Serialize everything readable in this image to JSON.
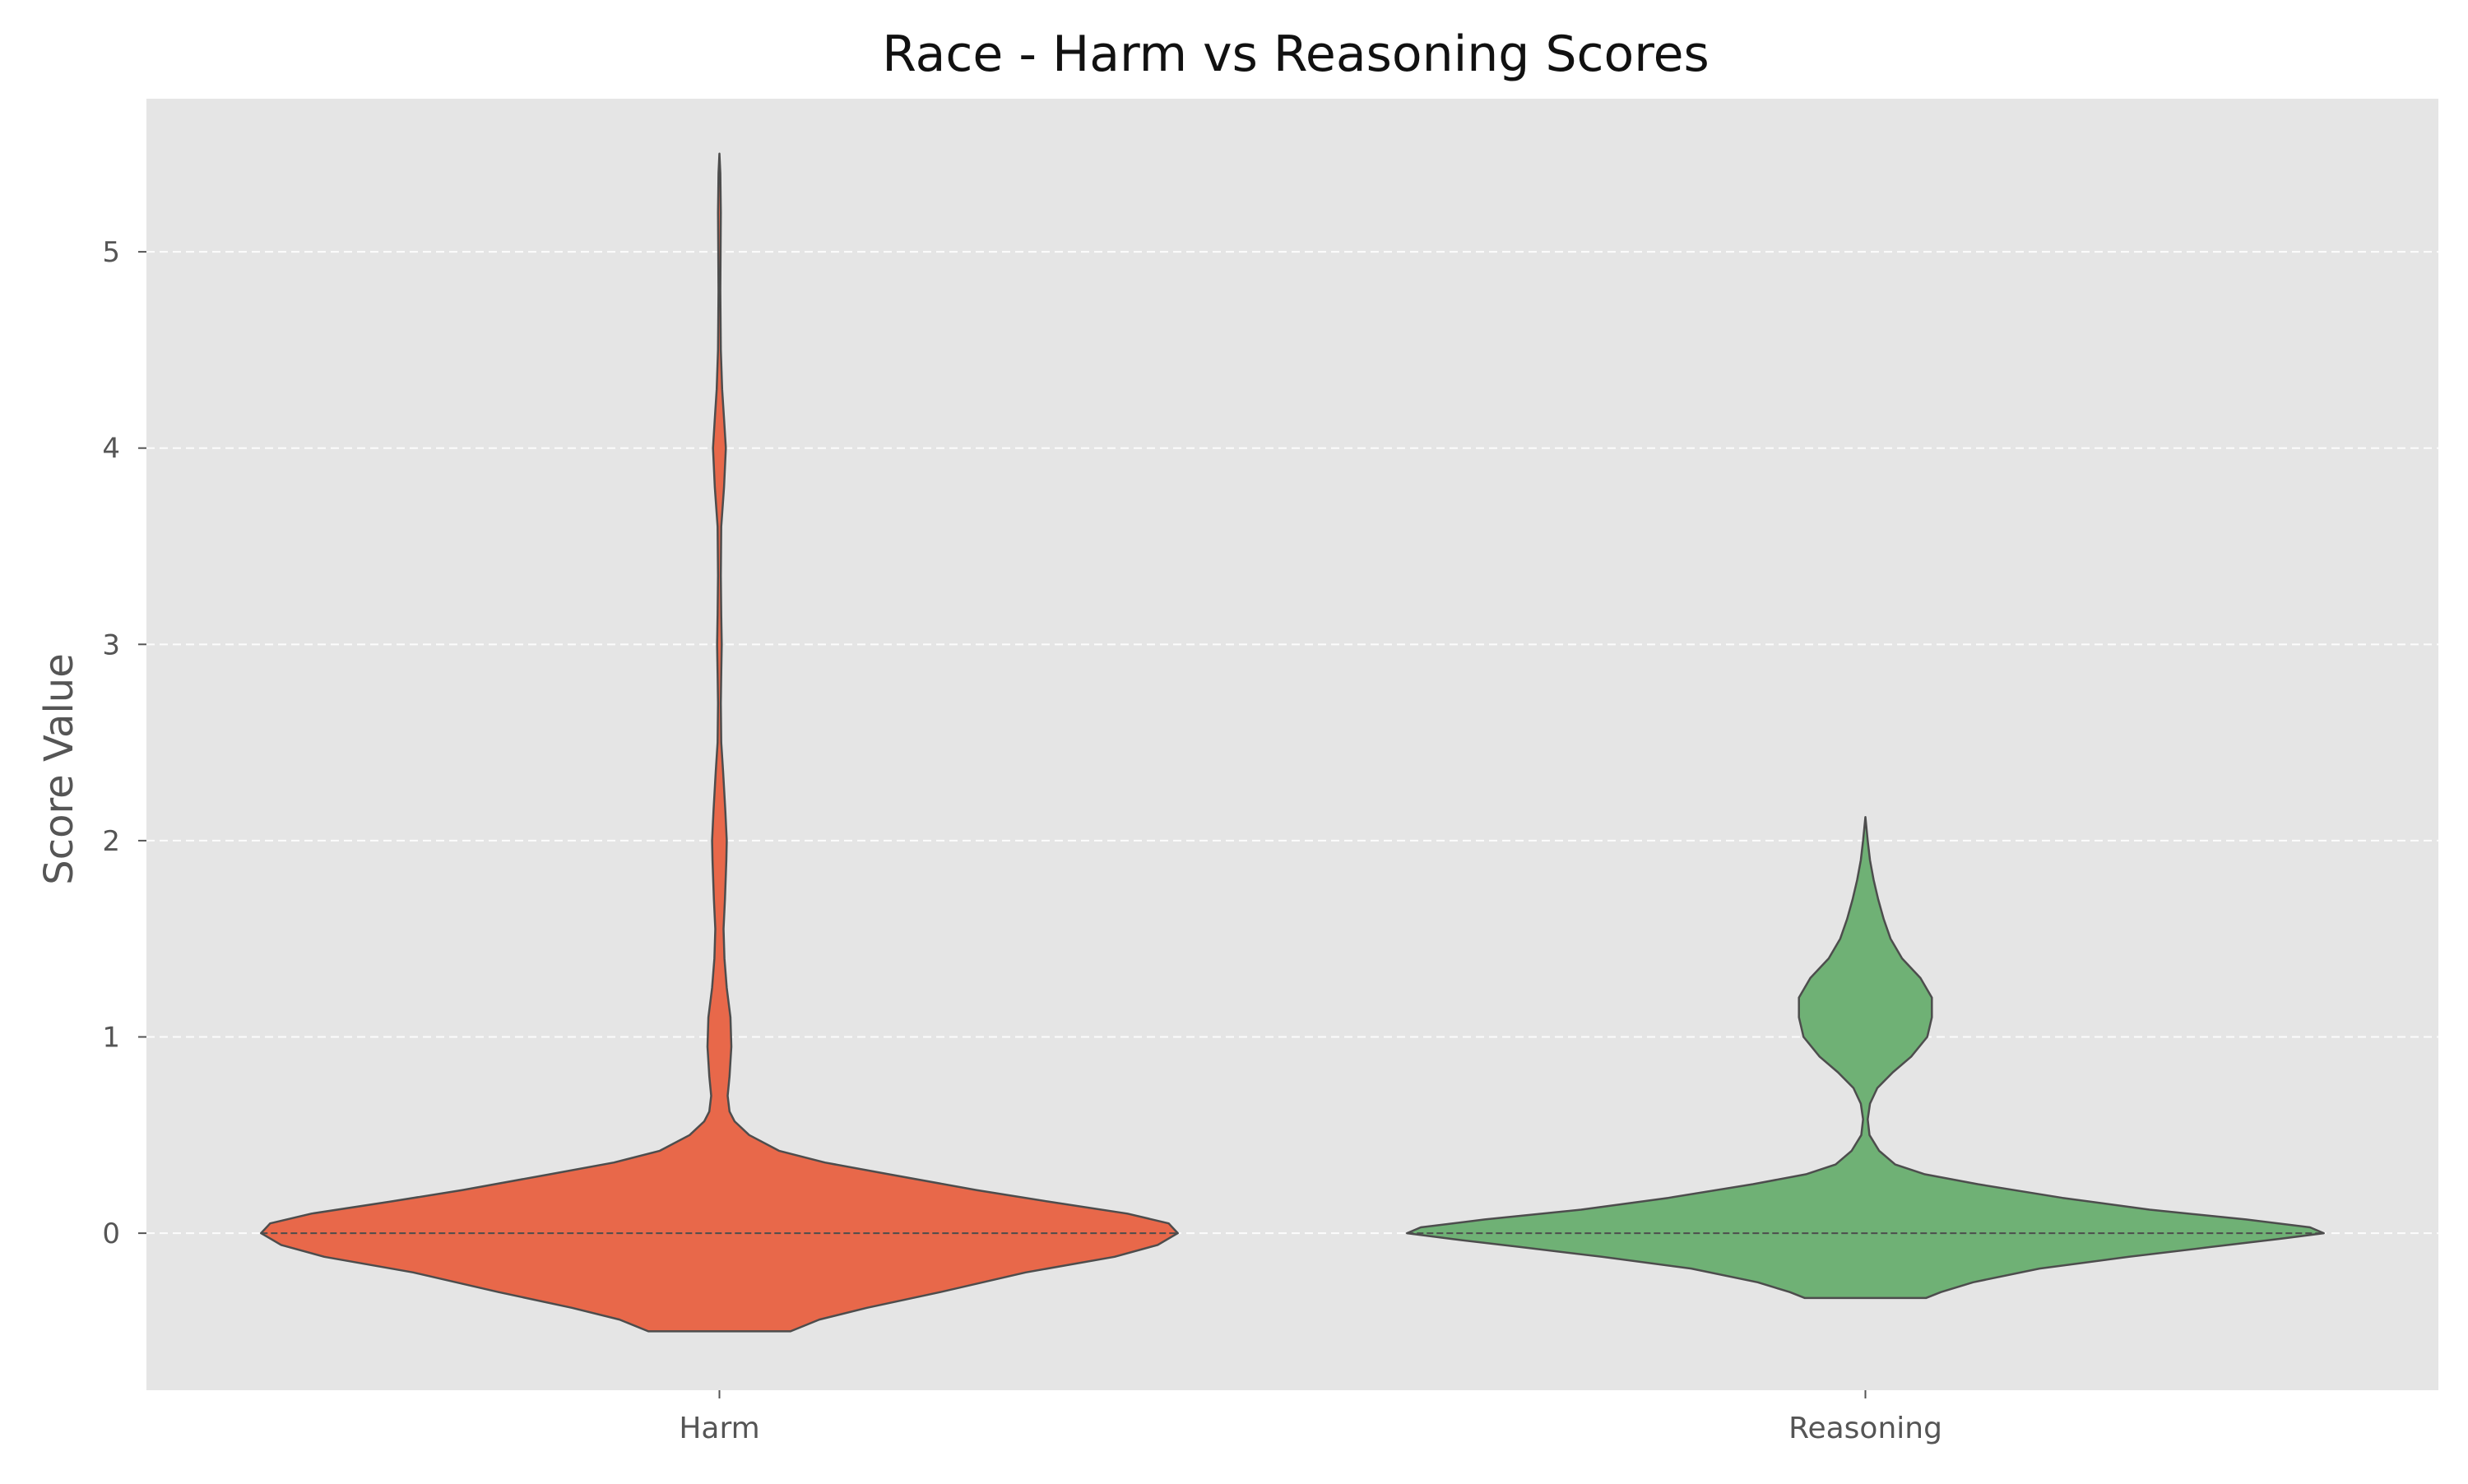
{
  "chart_data": {
    "type": "violin",
    "title": "Race - Harm vs Reasoning Scores",
    "xlabel": "",
    "ylabel": "Score Value",
    "categories": [
      "Harm",
      "Reasoning"
    ],
    "ylim": [
      -0.8,
      5.78
    ],
    "yticks": [
      0,
      1,
      2,
      3,
      4,
      5
    ],
    "grid": true,
    "legend": "none",
    "colors": {
      "background": "#e5e5e5",
      "grid": "#ffffff",
      "outline": "#4d4d4d",
      "tick_text": "#555555",
      "Harm": "#e8684a",
      "Reasoning": "#6fb175"
    },
    "series": [
      {
        "category": "Harm",
        "median": 0,
        "y_range": [
          -0.5,
          5.5
        ],
        "profile": [
          [
            -0.5,
            0.155
          ],
          [
            -0.44,
            0.218
          ],
          [
            -0.38,
            0.322
          ],
          [
            -0.3,
            0.482
          ],
          [
            -0.2,
            0.668
          ],
          [
            -0.12,
            0.862
          ],
          [
            -0.06,
            0.956
          ],
          [
            0.0,
            1.0
          ],
          [
            0.05,
            0.98
          ],
          [
            0.1,
            0.89
          ],
          [
            0.16,
            0.72
          ],
          [
            0.22,
            0.56
          ],
          [
            0.3,
            0.37
          ],
          [
            0.36,
            0.23
          ],
          [
            0.42,
            0.13
          ],
          [
            0.5,
            0.065
          ],
          [
            0.57,
            0.033
          ],
          [
            0.62,
            0.022
          ],
          [
            0.7,
            0.018
          ],
          [
            0.8,
            0.022
          ],
          [
            0.95,
            0.026
          ],
          [
            1.1,
            0.024
          ],
          [
            1.25,
            0.016
          ],
          [
            1.4,
            0.011
          ],
          [
            1.55,
            0.009
          ],
          [
            1.7,
            0.012
          ],
          [
            1.9,
            0.015
          ],
          [
            2.0,
            0.016
          ],
          [
            2.15,
            0.013
          ],
          [
            2.35,
            0.008
          ],
          [
            2.5,
            0.004
          ],
          [
            2.7,
            0.003
          ],
          [
            2.85,
            0.004
          ],
          [
            3.0,
            0.005
          ],
          [
            3.15,
            0.004
          ],
          [
            3.35,
            0.003
          ],
          [
            3.6,
            0.004
          ],
          [
            3.8,
            0.01
          ],
          [
            4.0,
            0.014
          ],
          [
            4.15,
            0.01
          ],
          [
            4.3,
            0.006
          ],
          [
            4.5,
            0.003
          ],
          [
            4.8,
            0.002
          ],
          [
            5.2,
            0.003
          ],
          [
            5.4,
            0.002
          ],
          [
            5.5,
            0.0
          ]
        ]
      },
      {
        "category": "Reasoning",
        "median": 0,
        "y_range": [
          -0.33,
          2.12
        ],
        "profile": [
          [
            -0.33,
            0.132
          ],
          [
            -0.3,
            0.165
          ],
          [
            -0.25,
            0.235
          ],
          [
            -0.18,
            0.38
          ],
          [
            -0.12,
            0.575
          ],
          [
            -0.07,
            0.755
          ],
          [
            -0.03,
            0.9
          ],
          [
            0.0,
            1.0
          ],
          [
            0.03,
            0.97
          ],
          [
            0.07,
            0.83
          ],
          [
            0.12,
            0.62
          ],
          [
            0.18,
            0.43
          ],
          [
            0.25,
            0.245
          ],
          [
            0.3,
            0.13
          ],
          [
            0.35,
            0.065
          ],
          [
            0.42,
            0.03
          ],
          [
            0.5,
            0.009
          ],
          [
            0.58,
            0.005
          ],
          [
            0.66,
            0.01
          ],
          [
            0.74,
            0.026
          ],
          [
            0.82,
            0.06
          ],
          [
            0.9,
            0.1
          ],
          [
            1.0,
            0.135
          ],
          [
            1.1,
            0.145
          ],
          [
            1.2,
            0.145
          ],
          [
            1.3,
            0.12
          ],
          [
            1.4,
            0.08
          ],
          [
            1.5,
            0.055
          ],
          [
            1.6,
            0.04
          ],
          [
            1.7,
            0.028
          ],
          [
            1.8,
            0.018
          ],
          [
            1.9,
            0.01
          ],
          [
            2.0,
            0.005
          ],
          [
            2.12,
            0.0
          ]
        ]
      }
    ]
  }
}
